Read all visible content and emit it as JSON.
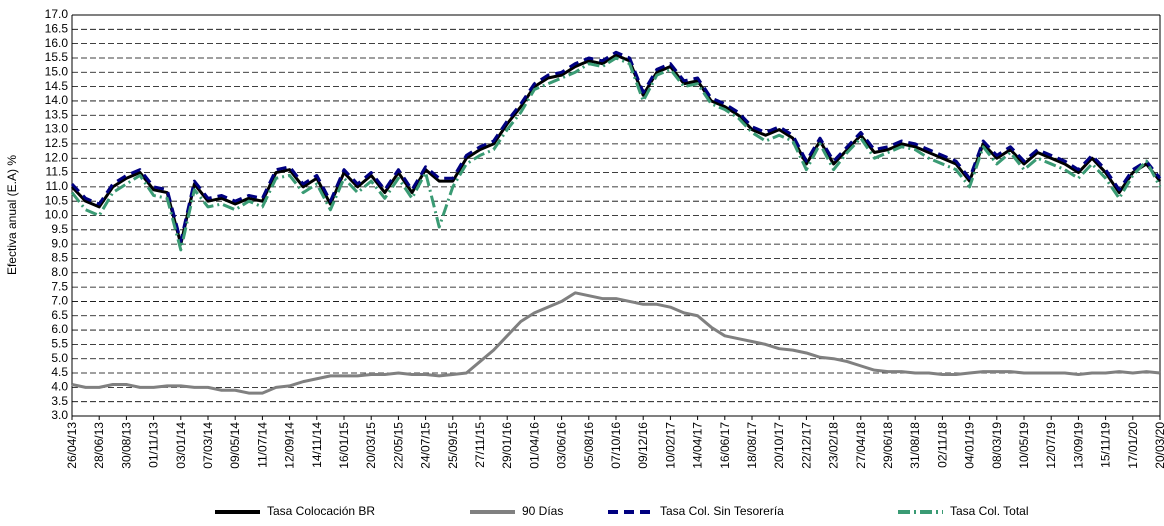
{
  "chart_data": {
    "type": "line",
    "y_label": "Efectiva anual (E.A) %",
    "categories": [
      "26/04/13",
      null,
      "28/06/13",
      null,
      "30/08/13",
      null,
      "01/11/13",
      null,
      "03/01/14",
      null,
      "07/03/14",
      null,
      "09/05/14",
      null,
      "11/07/14",
      null,
      "12/09/14",
      null,
      "14/11/14",
      null,
      "16/01/15",
      null,
      "20/03/15",
      null,
      "22/05/15",
      null,
      "24/07/15",
      null,
      "25/09/15",
      null,
      "27/11/15",
      null,
      "29/01/16",
      null,
      "01/04/16",
      null,
      "03/06/16",
      null,
      "05/08/16",
      null,
      "07/10/16",
      null,
      "09/12/16",
      null,
      "10/02/17",
      null,
      "14/04/17",
      null,
      "16/06/17",
      null,
      "18/08/17",
      null,
      "20/10/17",
      null,
      "22/12/17",
      null,
      "23/02/18",
      null,
      "27/04/18",
      null,
      "29/06/18",
      null,
      "31/08/18",
      null,
      "02/11/18",
      null,
      "04/01/19",
      null,
      "08/03/19",
      null,
      "10/05/19",
      null,
      "12/07/19",
      null,
      "13/09/19",
      null,
      "15/11/19",
      null,
      "17/01/20",
      null,
      "20/03/20"
    ],
    "series": [
      {
        "name": "Tasa Colocación BR",
        "color": "#000000",
        "dash": "none",
        "values": [
          11.0,
          10.5,
          10.3,
          11.0,
          11.3,
          11.5,
          10.9,
          10.8,
          9.0,
          11.1,
          10.5,
          10.6,
          10.4,
          10.6,
          10.5,
          11.5,
          11.6,
          11.0,
          11.3,
          10.4,
          11.5,
          11.0,
          11.4,
          10.8,
          11.5,
          10.8,
          11.6,
          11.2,
          11.2,
          12.0,
          12.3,
          12.5,
          13.2,
          13.8,
          14.5,
          14.8,
          14.9,
          15.2,
          15.4,
          15.3,
          15.6,
          15.4,
          14.2,
          15.0,
          15.2,
          14.6,
          14.7,
          14.0,
          13.8,
          13.5,
          13.0,
          12.8,
          13.0,
          12.7,
          11.8,
          12.6,
          11.8,
          12.3,
          12.8,
          12.2,
          12.3,
          12.5,
          12.4,
          12.2,
          12.0,
          11.8,
          11.2,
          12.5,
          12.0,
          12.3,
          11.8,
          12.2,
          12.0,
          11.8,
          11.5,
          12.0,
          11.5,
          10.8,
          11.5,
          11.8,
          11.2
        ]
      },
      {
        "name": "90 Días",
        "color": "#808080",
        "dash": "none",
        "values": [
          4.1,
          4.0,
          4.0,
          4.1,
          4.1,
          4.0,
          4.0,
          4.05,
          4.05,
          4.0,
          4.0,
          3.9,
          3.9,
          3.8,
          3.8,
          4.0,
          4.05,
          4.2,
          4.3,
          4.4,
          4.4,
          4.4,
          4.45,
          4.45,
          4.5,
          4.45,
          4.45,
          4.4,
          4.45,
          4.5,
          4.9,
          5.3,
          5.8,
          6.3,
          6.6,
          6.8,
          7.0,
          7.3,
          7.2,
          7.1,
          7.1,
          7.0,
          6.9,
          6.9,
          6.8,
          6.6,
          6.5,
          6.1,
          5.8,
          5.7,
          5.6,
          5.5,
          5.35,
          5.3,
          5.2,
          5.05,
          5.0,
          4.9,
          4.75,
          4.6,
          4.55,
          4.55,
          4.5,
          4.5,
          4.45,
          4.45,
          4.5,
          4.55,
          4.55,
          4.55,
          4.5,
          4.5,
          4.5,
          4.5,
          4.45,
          4.5,
          4.5,
          4.55,
          4.5,
          4.55,
          4.5
        ]
      },
      {
        "name": "Tasa Col. Sin Tesorería",
        "color": "#000080",
        "dash": "10 6",
        "values": [
          11.1,
          10.6,
          10.4,
          11.1,
          11.4,
          11.6,
          11.0,
          10.9,
          9.1,
          11.2,
          10.6,
          10.7,
          10.5,
          10.7,
          10.6,
          11.6,
          11.7,
          11.1,
          11.4,
          10.5,
          11.6,
          11.1,
          11.5,
          10.9,
          11.6,
          10.9,
          11.7,
          11.3,
          11.3,
          12.1,
          12.4,
          12.6,
          13.3,
          13.9,
          14.6,
          14.9,
          15.0,
          15.3,
          15.5,
          15.4,
          15.7,
          15.5,
          14.3,
          15.1,
          15.3,
          14.7,
          14.8,
          14.1,
          13.9,
          13.6,
          13.1,
          12.9,
          13.1,
          12.8,
          11.9,
          12.7,
          11.9,
          12.4,
          12.9,
          12.3,
          12.4,
          12.6,
          12.5,
          12.3,
          12.1,
          11.9,
          11.3,
          12.6,
          12.1,
          12.4,
          11.9,
          12.3,
          12.1,
          11.9,
          11.6,
          12.1,
          11.6,
          10.9,
          11.6,
          11.9,
          11.3
        ]
      },
      {
        "name": "Tasa Col. Total",
        "color": "#3a9b74",
        "dash": "12 4 2 4",
        "values": [
          10.8,
          10.2,
          10.0,
          10.8,
          11.1,
          11.4,
          10.7,
          10.6,
          8.8,
          10.9,
          10.3,
          10.4,
          10.2,
          10.5,
          10.3,
          11.3,
          11.4,
          10.8,
          11.1,
          10.2,
          11.3,
          10.8,
          11.2,
          10.6,
          11.3,
          10.6,
          11.5,
          9.6,
          11.0,
          11.8,
          12.1,
          12.3,
          13.0,
          13.6,
          14.4,
          14.6,
          14.8,
          15.0,
          15.3,
          15.2,
          15.5,
          15.3,
          14.0,
          14.9,
          15.1,
          14.5,
          14.6,
          13.9,
          13.7,
          13.4,
          12.9,
          12.6,
          12.8,
          12.6,
          11.6,
          12.5,
          11.6,
          12.2,
          12.7,
          12.0,
          12.2,
          12.4,
          12.3,
          12.0,
          11.8,
          11.6,
          11.0,
          12.4,
          11.8,
          12.2,
          11.6,
          12.0,
          11.8,
          11.6,
          11.3,
          11.8,
          11.3,
          10.6,
          11.4,
          11.9,
          11.0
        ]
      }
    ],
    "ylim": [
      3,
      17
    ],
    "yticks": [
      {
        "value": 3,
        "label": "3.0"
      },
      {
        "value": 3.5,
        "label": "3.5"
      },
      {
        "value": 4,
        "label": "4.0"
      },
      {
        "value": 4.5,
        "label": "4.5"
      },
      {
        "value": 5,
        "label": "5.0"
      },
      {
        "value": 5.5,
        "label": "5.5"
      },
      {
        "value": 6,
        "label": "6.0"
      },
      {
        "value": 6.5,
        "label": "6.5"
      },
      {
        "value": 7,
        "label": "7.0"
      },
      {
        "value": 7.5,
        "label": "7.5"
      },
      {
        "value": 8,
        "label": "8.0"
      },
      {
        "value": 8.5,
        "label": "8.5"
      },
      {
        "value": 9,
        "label": "9.0"
      },
      {
        "value": 9.5,
        "label": "9.5"
      },
      {
        "value": 10,
        "label": "10.0"
      },
      {
        "value": 10.5,
        "label": "10.5"
      },
      {
        "value": 11,
        "label": "11.0"
      },
      {
        "value": 11.5,
        "label": "11.5"
      },
      {
        "value": 12,
        "label": "12.0"
      },
      {
        "value": 12.5,
        "label": "12.5"
      },
      {
        "value": 13,
        "label": "13.0"
      },
      {
        "value": 13.5,
        "label": "13.5"
      },
      {
        "value": 14,
        "label": "14.0"
      },
      {
        "value": 14.5,
        "label": "14.5"
      },
      {
        "value": 15,
        "label": "15.0"
      },
      {
        "value": 15.5,
        "label": "15.5"
      },
      {
        "value": 16,
        "label": "16.0"
      },
      {
        "value": 16.5,
        "label": "16.5"
      },
      {
        "value": 17,
        "label": "17.0"
      }
    ],
    "grid": true,
    "legend": "bottom"
  }
}
